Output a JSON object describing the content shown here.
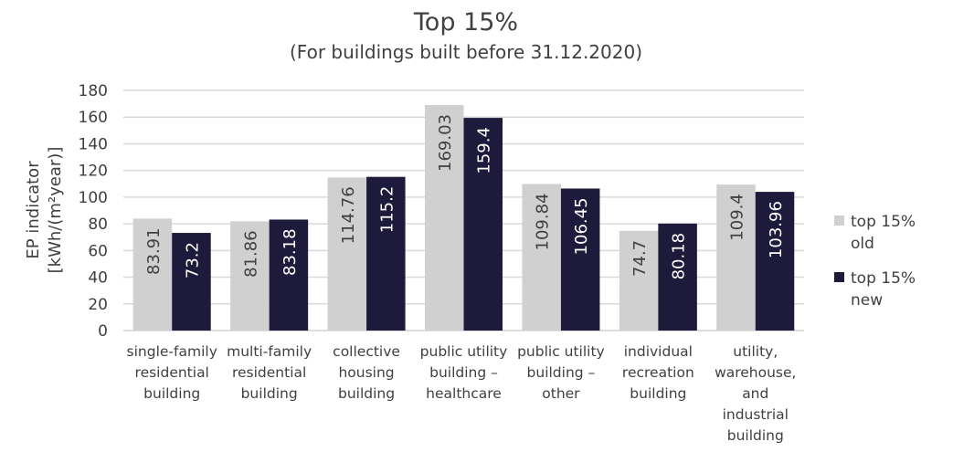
{
  "chart_data": {
    "type": "bar",
    "title": "Top 15%",
    "subtitle": "(For buildings built before 31.12.2020)",
    "xlabel": "",
    "ylabel": [
      "EP indicator",
      "[kWh/(m²year)]"
    ],
    "ylim": [
      0,
      180
    ],
    "yticks": [
      0,
      20,
      40,
      60,
      80,
      100,
      120,
      140,
      160,
      180
    ],
    "grid": true,
    "legend_position": "right",
    "categories": [
      [
        "single-family",
        "residential",
        "building"
      ],
      [
        "multi-family",
        "residential",
        "building"
      ],
      [
        "collective",
        "housing",
        "building"
      ],
      [
        "public utility",
        "building –",
        "healthcare"
      ],
      [
        "public utility",
        "building –",
        "other"
      ],
      [
        "individual",
        "recreation",
        "building"
      ],
      [
        "utility,",
        "warehouse,",
        "and",
        "industrial",
        "building"
      ]
    ],
    "series": [
      {
        "name": [
          "top 15%",
          "old"
        ],
        "color": "#d0d0d0",
        "label_color": "#404040",
        "values": [
          83.91,
          81.86,
          114.76,
          169.03,
          109.84,
          74.7,
          109.4
        ]
      },
      {
        "name": [
          "top 15%",
          "new"
        ],
        "color": "#1e1a3c",
        "label_color": "#ffffff",
        "values": [
          73.2,
          83.18,
          115.2,
          159.4,
          106.45,
          80.18,
          103.96
        ]
      }
    ]
  }
}
